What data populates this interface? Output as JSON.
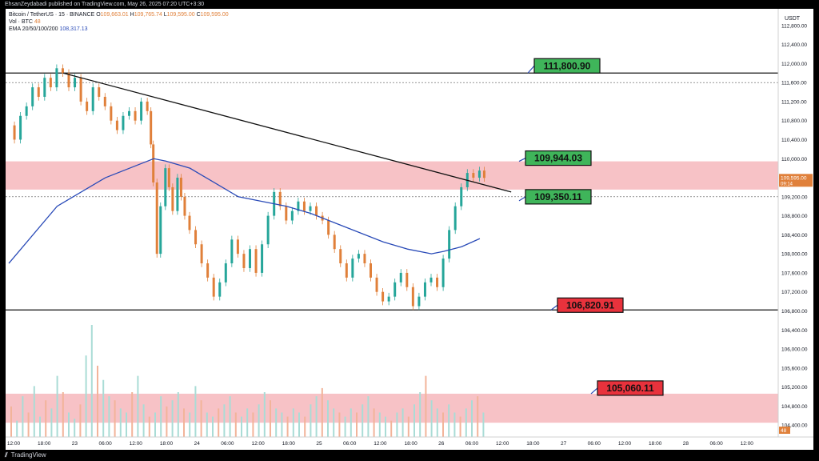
{
  "header": {
    "publisher_text": "EhsanZeydabadi published on TradingView.com, May 26, 2025 07:20 UTC+3:30"
  },
  "footer": {
    "brand": "TradingView"
  },
  "legend": {
    "symbol": "Bitcoin / TetherUS · 15 · BINANCE",
    "ohlc": [
      {
        "key": "O",
        "value": "109,663.01"
      },
      {
        "key": "H",
        "value": "109,765.74"
      },
      {
        "key": "L",
        "value": "109,595.00"
      },
      {
        "key": "C",
        "value": "109,595.00"
      }
    ],
    "volume_label": "Vol · BTC",
    "volume_value": "48",
    "ema_label": "EMA 20/50/100/200",
    "ema_value": "108,317.13"
  },
  "chart_data": {
    "type": "candlestick",
    "currency": "USDT",
    "ylim": [
      104150,
      113150
    ],
    "y_ticks": [
      104400,
      104800,
      105200,
      105600,
      106000,
      106400,
      106800,
      107200,
      107600,
      108000,
      108400,
      108800,
      109200,
      109600,
      110000,
      110400,
      110800,
      111200,
      111600,
      112000,
      112400,
      112800
    ],
    "x_ticks": [
      "12:00",
      "18:00",
      "23",
      "06:00",
      "12:00",
      "18:00",
      "24",
      "06:00",
      "12:00",
      "18:00",
      "25",
      "06:00",
      "12:00",
      "18:00",
      "26",
      "06:00",
      "12:00",
      "18:00",
      "27",
      "06:00",
      "12:00",
      "18:00",
      "28",
      "06:00",
      "12:00"
    ],
    "last_price": {
      "value": "109,595.00",
      "countdown": "09:14"
    },
    "volume_last": "48",
    "price_path": [
      [
        0,
        110700
      ],
      [
        0.5,
        110400
      ],
      [
        1,
        110900
      ],
      [
        1.5,
        111100
      ],
      [
        2,
        111500
      ],
      [
        2.5,
        111300
      ],
      [
        3,
        111700
      ],
      [
        3.5,
        111500
      ],
      [
        4,
        111900
      ],
      [
        4.5,
        111800
      ],
      [
        5,
        111500
      ],
      [
        5.5,
        111700
      ],
      [
        6,
        111200
      ],
      [
        6.5,
        111000
      ],
      [
        7,
        111500
      ],
      [
        7.5,
        111300
      ],
      [
        8,
        111100
      ],
      [
        8.5,
        110800
      ],
      [
        9,
        110600
      ],
      [
        9.5,
        110900
      ],
      [
        10,
        111000
      ],
      [
        10.5,
        110800
      ],
      [
        11,
        111200
      ],
      [
        11.5,
        111000
      ],
      [
        11.8,
        110300
      ],
      [
        12,
        109500
      ],
      [
        12.3,
        108000
      ],
      [
        12.6,
        109000
      ],
      [
        13,
        109800
      ],
      [
        13.3,
        109400
      ],
      [
        13.6,
        108900
      ],
      [
        14,
        109600
      ],
      [
        14.3,
        109200
      ],
      [
        14.6,
        108800
      ],
      [
        15,
        108500
      ],
      [
        15.5,
        108200
      ],
      [
        16,
        107800
      ],
      [
        16.5,
        107500
      ],
      [
        17,
        107100
      ],
      [
        17.5,
        107400
      ],
      [
        18,
        107800
      ],
      [
        18.5,
        108300
      ],
      [
        19,
        108000
      ],
      [
        19.5,
        107700
      ],
      [
        20,
        108100
      ],
      [
        20.5,
        107600
      ],
      [
        21,
        108200
      ],
      [
        21.5,
        108800
      ],
      [
        22,
        109300
      ],
      [
        22.5,
        109000
      ],
      [
        23,
        108700
      ],
      [
        23.5,
        108900
      ],
      [
        24,
        109100
      ],
      [
        24.5,
        108900
      ],
      [
        25,
        109000
      ],
      [
        25.5,
        108800
      ],
      [
        26,
        108700
      ],
      [
        26.5,
        108400
      ],
      [
        27,
        108100
      ],
      [
        27.5,
        107800
      ],
      [
        28,
        107500
      ],
      [
        28.5,
        107900
      ],
      [
        29,
        108000
      ],
      [
        29.5,
        107800
      ],
      [
        30,
        107500
      ],
      [
        30.5,
        107200
      ],
      [
        31,
        107000
      ],
      [
        31.5,
        107100
      ],
      [
        32,
        107400
      ],
      [
        32.5,
        107600
      ],
      [
        33,
        107300
      ],
      [
        33.5,
        106900
      ],
      [
        34,
        107100
      ],
      [
        34.5,
        107400
      ],
      [
        35,
        107500
      ],
      [
        35.5,
        107300
      ],
      [
        36,
        107900
      ],
      [
        36.5,
        108500
      ],
      [
        37,
        109000
      ],
      [
        37.5,
        109400
      ],
      [
        38,
        109700
      ],
      [
        38.5,
        109600
      ],
      [
        39,
        109750
      ],
      [
        39.4,
        109595
      ]
    ],
    "volume": [
      15,
      8,
      20,
      12,
      25,
      10,
      18,
      14,
      30,
      22,
      12,
      9,
      16,
      40,
      55,
      35,
      28,
      20,
      18,
      14,
      12,
      22,
      30,
      16,
      10,
      12,
      20,
      15,
      18,
      22,
      14,
      12,
      25,
      18,
      12,
      10,
      14,
      16,
      20,
      12,
      10,
      14,
      12,
      16,
      22,
      18,
      14,
      12,
      10,
      14,
      12,
      10,
      16,
      20,
      24,
      18,
      14,
      12,
      10,
      14,
      12,
      16,
      20,
      14,
      12,
      10,
      8,
      12,
      14,
      10,
      16,
      22,
      30,
      18,
      14,
      12,
      16,
      12,
      10,
      14,
      18,
      20,
      12
    ],
    "ema200": [
      [
        0,
        107800
      ],
      [
        4,
        109000
      ],
      [
        8,
        109600
      ],
      [
        11,
        109900
      ],
      [
        12,
        110000
      ],
      [
        13,
        109950
      ],
      [
        15,
        109800
      ],
      [
        17,
        109500
      ],
      [
        19,
        109200
      ],
      [
        21,
        109100
      ],
      [
        23,
        109000
      ],
      [
        25,
        108850
      ],
      [
        27,
        108650
      ],
      [
        29,
        108450
      ],
      [
        31,
        108250
      ],
      [
        33,
        108100
      ],
      [
        35,
        108000
      ],
      [
        36,
        108050
      ],
      [
        37.5,
        108150
      ],
      [
        39,
        108320
      ]
    ],
    "trendline": {
      "from": [
        4.5,
        111800
      ],
      "to": [
        41.6,
        109300
      ]
    },
    "horizontal_lines": [
      111800,
      106820,
      109200,
      111600
    ],
    "zones": [
      {
        "from": 109350,
        "to": 109944,
        "color": "#f5b3b8"
      },
      {
        "from": 104450,
        "to": 105060,
        "color": "#f5b3b8"
      }
    ],
    "callouts": [
      {
        "text": "111,800.90",
        "color": "#3fb55a",
        "anchor_price": 111800
      },
      {
        "text": "109,944.03",
        "color": "#3fb55a",
        "anchor_price": 109944
      },
      {
        "text": "109,350.11",
        "color": "#3fb55a",
        "anchor_price": 109350
      },
      {
        "text": "106,820.91",
        "color": "#e8323c",
        "anchor_price": 106820
      },
      {
        "text": "105,060.11",
        "color": "#e8323c",
        "anchor_price": 105060
      }
    ]
  },
  "colors": {
    "up": "#26a69a",
    "down": "#e0803a",
    "ema": "#2a4bb8",
    "zone": "#f5b3b8"
  }
}
